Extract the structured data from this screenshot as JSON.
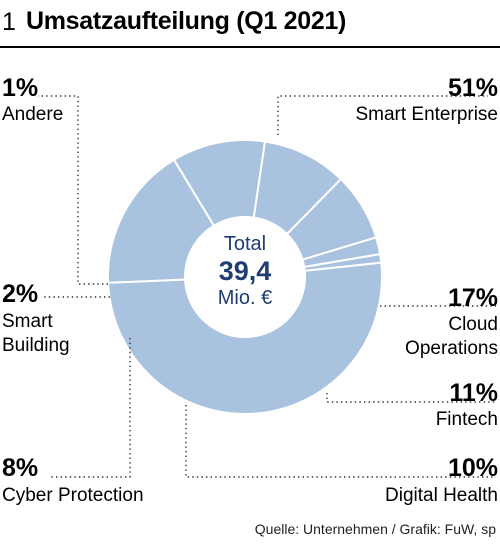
{
  "header": {
    "number": "1",
    "title": "Umsatzaufteilung (Q1 2021)"
  },
  "chart_data": {
    "type": "pie",
    "style": "donut",
    "title": "Umsatzaufteilung (Q1 2021)",
    "slices": [
      {
        "label": "Smart Enterprise",
        "value": 51,
        "display": "51%"
      },
      {
        "label": "Cloud Operations",
        "value": 17,
        "display": "17%"
      },
      {
        "label": "Fintech",
        "value": 11,
        "display": "11%"
      },
      {
        "label": "Digital Health",
        "value": 10,
        "display": "10%"
      },
      {
        "label": "Cyber Protection",
        "value": 8,
        "display": "8%"
      },
      {
        "label": "Smart Building",
        "value": 2,
        "display": "2%"
      },
      {
        "label": "Andere",
        "value": 1,
        "display": "1%"
      }
    ],
    "center": {
      "line1": "Total",
      "value": "39,4",
      "unit": "Mio. €"
    },
    "colors": {
      "slice": "#a9c2df",
      "separator": "#ffffff",
      "leader": "#333333",
      "center_text": "#1f3c73"
    }
  },
  "source": "Quelle: Unternehmen / Grafik: FuW, sp"
}
